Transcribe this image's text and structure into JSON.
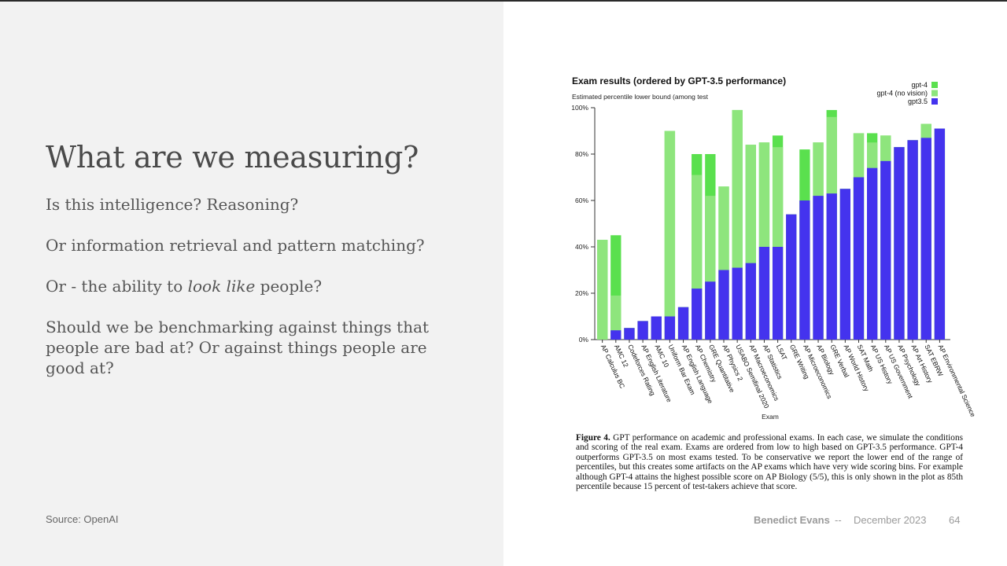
{
  "slide": {
    "title": "What are we measuring?",
    "bullets": {
      "b1": "Is this intelligence? Reasoning?",
      "b2": "Or information retrieval and pattern matching?",
      "b3_pre": "Or - the ability to ",
      "b3_em": "look like",
      "b3_post": " people?",
      "b4": "Should we be benchmarking against things that people are bad at? Or against things people are good at?"
    },
    "source": "Source: OpenAI",
    "footer": {
      "author": "Benedict Evans",
      "separator": "--",
      "date": "December 2023",
      "page": "64"
    }
  },
  "figure": {
    "caption_label": "Figure 4.",
    "caption_text": "GPT performance on academic and professional exams. In each case, we simulate the conditions and scoring of the real exam. Exams are ordered from low to high based on GPT-3.5 performance. GPT-4 outperforms GPT-3.5 on most exams tested. To be conservative we report the lower end of the range of percentiles, but this creates some artifacts on the AP exams which have very wide scoring bins. For example although GPT-4 attains the highest possible score on AP Biology (5/5), this is only shown in the plot as 85th percentile because 15 percent of test-takers achieve that score."
  },
  "chart_data": {
    "type": "bar",
    "title": "Exam results (ordered by GPT-3.5 performance)",
    "subtitle": "Estimated percentile lower bound (among test",
    "xlabel": "Exam",
    "ylabel": "",
    "ylim": [
      0,
      100
    ],
    "yticks": [
      "0%",
      "20%",
      "40%",
      "60%",
      "80%",
      "100%"
    ],
    "legend_position": "top-right",
    "categories": [
      "AP Calculus BC",
      "AMC 12",
      "Codeforces Rating",
      "AP English Literature",
      "AMC 10",
      "Uniform Bar Exam",
      "AP English Language",
      "AP Chemistry",
      "GRE Quantitative",
      "AP Physics 2",
      "USABO Semifinal 2020",
      "AP Macroeconomics",
      "AP Statistics",
      "LSAT",
      "GRE Writing",
      "AP Microeconomics",
      "AP Biology",
      "GRE Verbal",
      "AP World History",
      "SAT Math",
      "AP US History",
      "AP US Government",
      "AP Psychology",
      "AP Art History",
      "SAT EBRW",
      "AP Environmental Science"
    ],
    "series": [
      {
        "name": "gpt-4",
        "color": "#5ae04e",
        "values": [
          43,
          45,
          5,
          8,
          10,
          90,
          14,
          80,
          80,
          66,
          99,
          84,
          85,
          88,
          54,
          82,
          85,
          99,
          65,
          89,
          89,
          88,
          83,
          86,
          93,
          91
        ]
      },
      {
        "name": "gpt-4 (no vision)",
        "color": "#8ee57d",
        "values": [
          43,
          19,
          5,
          8,
          10,
          90,
          14,
          71,
          62,
          66,
          99,
          84,
          85,
          83,
          54,
          60,
          85,
          96,
          65,
          89,
          85,
          88,
          83,
          86,
          93,
          91
        ]
      },
      {
        "name": "gpt3.5",
        "color": "#4433ee",
        "values": [
          0,
          4,
          5,
          8,
          10,
          10,
          14,
          22,
          25,
          30,
          31,
          33,
          40,
          40,
          54,
          60,
          62,
          63,
          65,
          70,
          74,
          77,
          83,
          86,
          87,
          91
        ]
      }
    ]
  }
}
